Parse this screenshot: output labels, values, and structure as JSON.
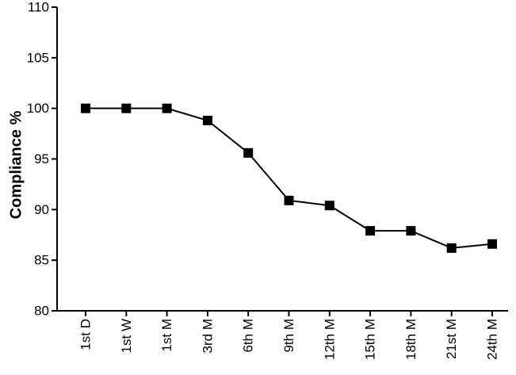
{
  "chart_data": {
    "type": "line",
    "title": "",
    "xlabel": "",
    "ylabel": "Compliance %",
    "ylim": [
      80,
      110
    ],
    "yticks": [
      80,
      85,
      90,
      95,
      100,
      105,
      110
    ],
    "grid": false,
    "categories": [
      "1st D",
      "1st W",
      "1st M",
      "3rd M",
      "6th M",
      "9th M",
      "12th M",
      "15th M",
      "18th M",
      "21st M",
      "24th M"
    ],
    "series": [
      {
        "values": [
          100,
          100,
          100,
          98.8,
          95.6,
          90.9,
          90.4,
          87.9,
          87.9,
          86.2,
          86.6
        ],
        "marker": "square",
        "color": "#000000"
      }
    ]
  }
}
